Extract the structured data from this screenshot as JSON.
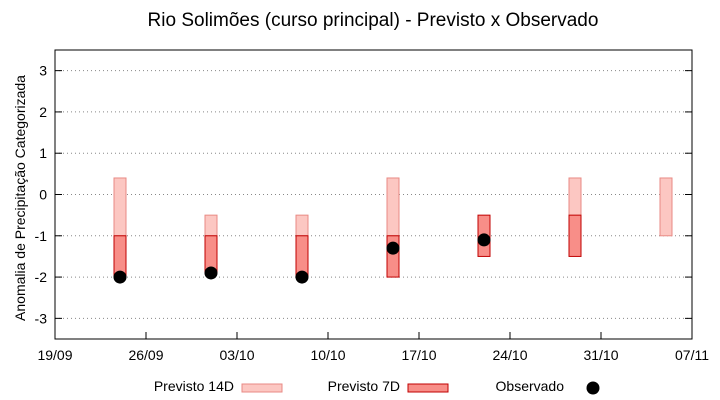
{
  "chart_data": {
    "type": "range-bar",
    "title": "Rio Solimões (curso principal) - Previsto x Observado",
    "ylabel": "Anomalia de Precipitação Categorizada",
    "xlabel": "",
    "ylim": [
      -3.5,
      3.5
    ],
    "yticks": [
      "-3",
      "-2",
      "-1",
      "0",
      "1",
      "2",
      "3"
    ],
    "ytick_values": [
      -3,
      -2,
      -1,
      0,
      1,
      2,
      3
    ],
    "xticks": [
      "19/09",
      "26/09",
      "03/10",
      "10/10",
      "17/10",
      "24/10",
      "31/10",
      "07/11"
    ],
    "grid": "horizontal dotted",
    "legend_position": "bottom",
    "colors": {
      "p14_fill": "#fcc7c2",
      "p14_stroke": "#e88a84",
      "p7_fill": "#f88e88",
      "p7_stroke": "#c00000",
      "obs": "#000000"
    },
    "series": [
      {
        "name": "Previsto 14D",
        "x": [
          "24/09",
          "01/10",
          "08/10",
          "15/10",
          "29/10",
          "05/11"
        ],
        "low": [
          -1.0,
          -1.0,
          -1.0,
          -1.0,
          -1.0,
          -1.0
        ],
        "high": [
          0.4,
          -0.5,
          -0.5,
          0.4,
          0.4,
          0.4
        ]
      },
      {
        "name": "Previsto 7D",
        "x": [
          "24/09",
          "01/10",
          "08/10",
          "15/10",
          "22/10",
          "29/10"
        ],
        "low": [
          -2.0,
          -1.9,
          -2.0,
          -2.0,
          -1.5,
          -1.5
        ],
        "high": [
          -1.0,
          -1.0,
          -1.0,
          -1.0,
          -0.5,
          -0.5
        ]
      },
      {
        "name": "Observado",
        "x": [
          "24/09",
          "01/10",
          "08/10",
          "15/10",
          "22/10"
        ],
        "values": [
          -2.0,
          -1.9,
          -2.0,
          -1.3,
          -1.1
        ]
      }
    ]
  }
}
